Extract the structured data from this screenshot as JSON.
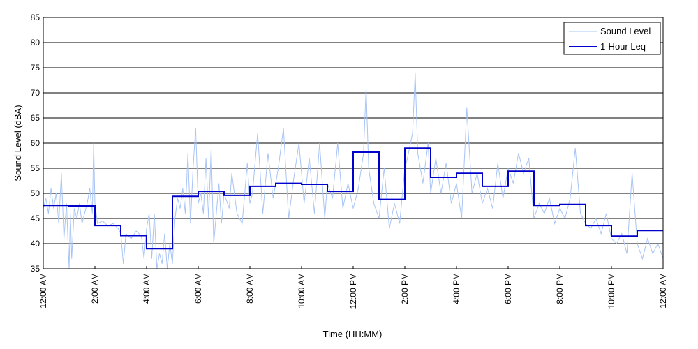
{
  "chart_data": {
    "type": "line",
    "xlabel": "Time (HH:MM)",
    "ylabel": "Sound Level (dBA)",
    "xlim": [
      0,
      24
    ],
    "ylim": [
      35,
      85
    ],
    "grid": "horizontal",
    "legend_position": "top-right",
    "x_ticks": [
      {
        "hour": 0,
        "label": "12:00 AM"
      },
      {
        "hour": 2,
        "label": "2:00 AM"
      },
      {
        "hour": 4,
        "label": "4:00 AM"
      },
      {
        "hour": 6,
        "label": "6:00 AM"
      },
      {
        "hour": 8,
        "label": "8:00 AM"
      },
      {
        "hour": 10,
        "label": "10:00 AM"
      },
      {
        "hour": 12,
        "label": "12:00 PM"
      },
      {
        "hour": 14,
        "label": "2:00 PM"
      },
      {
        "hour": 16,
        "label": "4:00 PM"
      },
      {
        "hour": 18,
        "label": "6:00 PM"
      },
      {
        "hour": 20,
        "label": "8:00 PM"
      },
      {
        "hour": 22,
        "label": "10:00 PM"
      },
      {
        "hour": 24,
        "label": "12:00 AM"
      }
    ],
    "y_ticks": [
      35,
      40,
      45,
      50,
      55,
      60,
      65,
      70,
      75,
      80,
      85
    ],
    "series": [
      {
        "name": "Sound Level",
        "color": "#a8c4f5",
        "style": "thin",
        "points": [
          [
            0.0,
            47
          ],
          [
            0.1,
            49
          ],
          [
            0.2,
            46
          ],
          [
            0.3,
            51
          ],
          [
            0.4,
            47
          ],
          [
            0.5,
            50
          ],
          [
            0.6,
            44
          ],
          [
            0.7,
            54
          ],
          [
            0.8,
            41
          ],
          [
            0.9,
            48
          ],
          [
            1.0,
            35
          ],
          [
            1.05,
            46
          ],
          [
            1.1,
            37
          ],
          [
            1.2,
            47
          ],
          [
            1.3,
            45
          ],
          [
            1.4,
            48
          ],
          [
            1.5,
            44
          ],
          [
            1.6,
            46
          ],
          [
            1.7,
            48
          ],
          [
            1.8,
            51
          ],
          [
            1.9,
            46
          ],
          [
            1.95,
            60
          ],
          [
            2.0,
            48
          ],
          [
            2.1,
            44
          ],
          [
            2.3,
            44.5
          ],
          [
            2.5,
            43.5
          ],
          [
            2.7,
            44
          ],
          [
            2.9,
            43
          ],
          [
            3.0,
            42
          ],
          [
            3.1,
            36
          ],
          [
            3.2,
            42
          ],
          [
            3.4,
            41
          ],
          [
            3.6,
            42.5
          ],
          [
            3.8,
            41.5
          ],
          [
            3.9,
            37
          ],
          [
            4.0,
            43
          ],
          [
            4.1,
            46
          ],
          [
            4.2,
            37
          ],
          [
            4.3,
            46
          ],
          [
            4.4,
            35
          ],
          [
            4.5,
            38
          ],
          [
            4.6,
            36
          ],
          [
            4.7,
            42
          ],
          [
            4.8,
            35
          ],
          [
            4.9,
            40
          ],
          [
            5.0,
            36
          ],
          [
            5.1,
            45
          ],
          [
            5.2,
            49
          ],
          [
            5.3,
            47
          ],
          [
            5.4,
            51
          ],
          [
            5.5,
            46
          ],
          [
            5.6,
            58
          ],
          [
            5.7,
            44
          ],
          [
            5.8,
            55
          ],
          [
            5.9,
            63
          ],
          [
            6.0,
            48
          ],
          [
            6.1,
            50
          ],
          [
            6.2,
            46
          ],
          [
            6.3,
            57
          ],
          [
            6.4,
            45
          ],
          [
            6.5,
            59
          ],
          [
            6.6,
            40
          ],
          [
            6.8,
            52
          ],
          [
            6.9,
            44
          ],
          [
            7.0,
            50
          ],
          [
            7.2,
            47
          ],
          [
            7.3,
            54
          ],
          [
            7.5,
            46
          ],
          [
            7.7,
            44
          ],
          [
            7.9,
            56
          ],
          [
            8.0,
            48
          ],
          [
            8.1,
            50
          ],
          [
            8.3,
            62
          ],
          [
            8.5,
            46
          ],
          [
            8.7,
            58
          ],
          [
            8.9,
            49
          ],
          [
            9.1,
            55
          ],
          [
            9.3,
            63
          ],
          [
            9.5,
            45
          ],
          [
            9.7,
            53
          ],
          [
            9.9,
            60
          ],
          [
            10.1,
            48
          ],
          [
            10.3,
            57
          ],
          [
            10.5,
            46
          ],
          [
            10.7,
            60
          ],
          [
            10.9,
            45
          ],
          [
            11.0,
            52
          ],
          [
            11.2,
            49
          ],
          [
            11.4,
            60
          ],
          [
            11.6,
            47
          ],
          [
            11.8,
            52
          ],
          [
            12.0,
            47
          ],
          [
            12.2,
            51
          ],
          [
            12.4,
            58
          ],
          [
            12.5,
            71
          ],
          [
            12.6,
            55
          ],
          [
            12.8,
            48
          ],
          [
            13.0,
            45
          ],
          [
            13.2,
            55
          ],
          [
            13.4,
            43
          ],
          [
            13.6,
            48
          ],
          [
            13.8,
            44
          ],
          [
            14.0,
            55
          ],
          [
            14.1,
            57
          ],
          [
            14.3,
            62
          ],
          [
            14.4,
            74
          ],
          [
            14.5,
            58
          ],
          [
            14.7,
            52
          ],
          [
            14.9,
            60
          ],
          [
            15.0,
            50
          ],
          [
            15.2,
            57
          ],
          [
            15.4,
            50
          ],
          [
            15.6,
            56
          ],
          [
            15.8,
            48
          ],
          [
            16.0,
            52
          ],
          [
            16.2,
            45
          ],
          [
            16.4,
            67
          ],
          [
            16.6,
            50
          ],
          [
            16.8,
            54
          ],
          [
            17.0,
            48
          ],
          [
            17.2,
            51
          ],
          [
            17.4,
            47
          ],
          [
            17.6,
            56
          ],
          [
            17.8,
            49
          ],
          [
            18.0,
            55
          ],
          [
            18.2,
            52
          ],
          [
            18.4,
            58
          ],
          [
            18.6,
            54
          ],
          [
            18.8,
            57
          ],
          [
            19.0,
            45
          ],
          [
            19.2,
            48
          ],
          [
            19.4,
            46
          ],
          [
            19.6,
            49
          ],
          [
            19.8,
            44
          ],
          [
            20.0,
            47
          ],
          [
            20.2,
            45
          ],
          [
            20.4,
            49
          ],
          [
            20.6,
            59
          ],
          [
            20.8,
            46
          ],
          [
            21.0,
            44
          ],
          [
            21.2,
            43
          ],
          [
            21.4,
            45
          ],
          [
            21.6,
            42
          ],
          [
            21.8,
            46
          ],
          [
            22.0,
            41
          ],
          [
            22.2,
            40
          ],
          [
            22.4,
            42
          ],
          [
            22.6,
            38
          ],
          [
            22.8,
            54
          ],
          [
            23.0,
            40
          ],
          [
            23.2,
            37
          ],
          [
            23.4,
            41
          ],
          [
            23.6,
            38
          ],
          [
            23.8,
            40
          ],
          [
            24.0,
            37
          ]
        ]
      },
      {
        "name": "1-Hour Leq",
        "color": "#0000cc",
        "style": "step",
        "start": 0,
        "hourly_values": [
          47.6,
          47.5,
          43.6,
          41.6,
          39.0,
          49.4,
          50.4,
          49.6,
          51.4,
          52.0,
          51.8,
          50.4,
          58.2,
          48.8,
          59.0,
          53.2,
          54.0,
          51.4,
          54.4,
          47.6,
          47.8,
          43.6,
          41.5,
          42.6
        ]
      }
    ]
  }
}
